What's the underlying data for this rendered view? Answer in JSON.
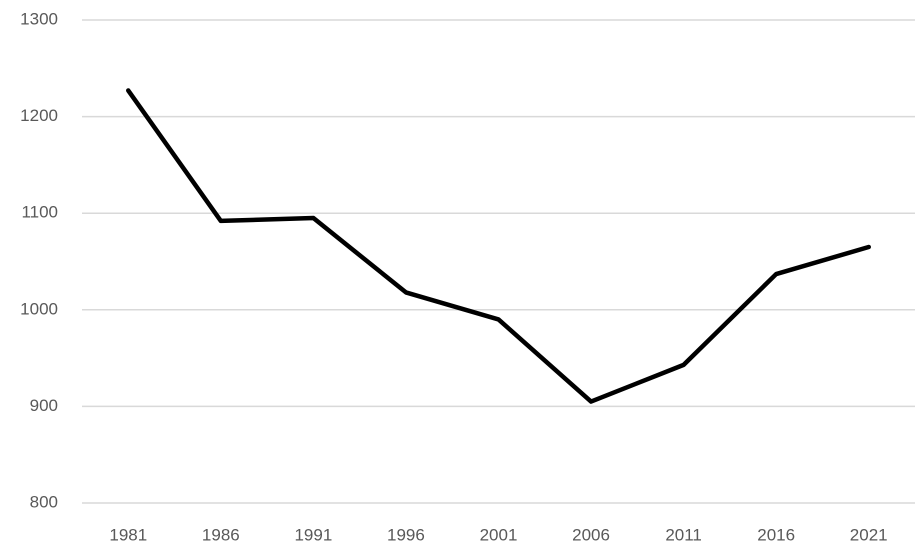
{
  "chart_data": {
    "type": "line",
    "categories": [
      "1981",
      "1986",
      "1991",
      "1996",
      "2001",
      "2006",
      "2011",
      "2016",
      "2021"
    ],
    "values": [
      1227,
      1092,
      1095,
      1018,
      990,
      905,
      943,
      1037,
      1065
    ],
    "color": "#000000",
    "ylim": [
      800,
      1300
    ],
    "yticks": [
      800,
      900,
      1000,
      1100,
      1200,
      1300
    ],
    "grid": true
  }
}
